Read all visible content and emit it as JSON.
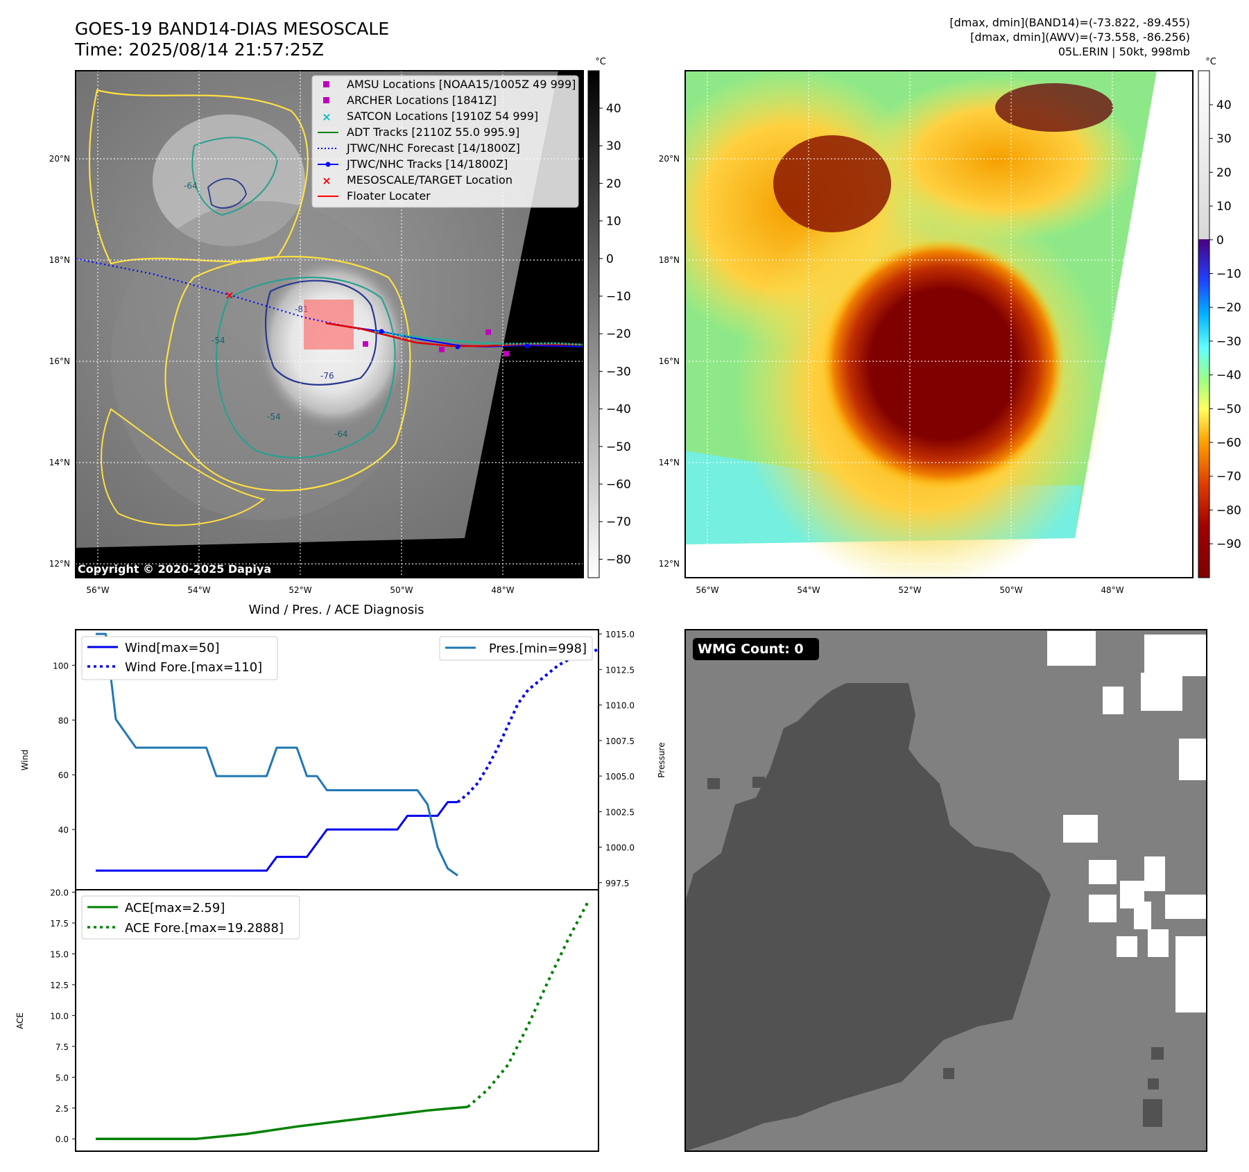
{
  "header": {
    "title_line1": "GOES-19 BAND14-DIAS MESOSCALE",
    "title_line2": "Time: 2025/08/14 21:57:25Z",
    "info_line1": "[dmax, dmin](BAND14)=(-73.822, -89.455)",
    "info_line2": "[dmax, dmin](AWV)=(-73.558, -86.256)",
    "info_line3": "05L.ERIN | 50kt, 998mb"
  },
  "satellite_panels": {
    "lat_labels": [
      "20°N",
      "18°N",
      "16°N",
      "14°N",
      "12°N"
    ],
    "lon_labels": [
      "56°W",
      "54°W",
      "52°W",
      "50°W",
      "48°W"
    ],
    "copyright": "Copyright © 2020-2025 Dapiya",
    "contour_labels": [
      "-64",
      "-54",
      "-81",
      "-76",
      "-54",
      "-64"
    ],
    "legend": [
      {
        "label": "AMSU Locations [NOAA15/1005Z 49 999]",
        "marker": "square",
        "color": "#c000c0"
      },
      {
        "label": "ARCHER Locations [1841Z]",
        "marker": "square",
        "color": "#c000c0"
      },
      {
        "label": "SATCON Locations [1910Z 54 999]",
        "marker": "x",
        "color": "#00c0c0"
      },
      {
        "label": "ADT Tracks [2110Z 55.0 995.9]",
        "marker": "line",
        "color": "#008000"
      },
      {
        "label": "JTWC/NHC Forecast [14/1800Z]",
        "marker": "dotted",
        "color": "#0000ff"
      },
      {
        "label": "JTWC/NHC Tracks [14/1800Z]",
        "marker": "line-dot",
        "color": "#0000ff"
      },
      {
        "label": "MESOSCALE/TARGET Location",
        "marker": "x",
        "color": "#ff0000"
      },
      {
        "label": "Floater Locater",
        "marker": "line",
        "color": "#ff0000"
      }
    ],
    "colorbar_left": {
      "unit": "°C",
      "ticks": [
        "40",
        "30",
        "20",
        "10",
        "0",
        "−10",
        "−20",
        "−30",
        "−40",
        "−50",
        "−60",
        "−70",
        "−80"
      ]
    },
    "colorbar_right": {
      "unit": "°C",
      "ticks": [
        "40",
        "30",
        "20",
        "10",
        "0",
        "−10",
        "−20",
        "−30",
        "−40",
        "−50",
        "−60",
        "−70",
        "−80",
        "−90"
      ]
    }
  },
  "wmg_panel": {
    "label": "WMG Count: 0"
  },
  "chart_data": [
    {
      "type": "line",
      "title": "Wind / Pres. / ACE Diagnosis",
      "ylabel": "Wind",
      "ylabel_right": "Pressure",
      "ylim": [
        18,
        113
      ],
      "ylim_right": [
        997,
        1015.3
      ],
      "yticks": [
        40,
        60,
        80,
        100
      ],
      "yticks_right": [
        "997.5",
        "1000.0",
        "1002.5",
        "1005.0",
        "1007.5",
        "1010.0",
        "1012.5",
        "1015.0"
      ],
      "x_range": [
        -2,
        50
      ],
      "legend_left": [
        "Wind[max=50]",
        "Wind Fore.[max=110]"
      ],
      "legend_right": [
        "Pres.[min=998]"
      ],
      "series": [
        {
          "name": "Wind[max=50]",
          "color": "#0000ee",
          "style": "solid",
          "x": [
            0,
            7,
            8,
            10,
            11,
            13,
            14,
            17,
            18,
            19,
            20,
            21,
            22,
            23,
            24,
            25,
            26,
            27,
            28,
            29,
            30,
            31,
            32,
            33,
            34,
            35,
            36
          ],
          "values": [
            25,
            25,
            25,
            25,
            25,
            25,
            25,
            25,
            30,
            30,
            30,
            30,
            35,
            40,
            40,
            40,
            40,
            40,
            40,
            40,
            40,
            45,
            45,
            45,
            45,
            50,
            50
          ]
        },
        {
          "name": "Wind Fore.[max=110]",
          "color": "#0000ee",
          "style": "dotted",
          "x": [
            36,
            37,
            38,
            39,
            40,
            41,
            42,
            43,
            44,
            45,
            46,
            47,
            48,
            49,
            50
          ],
          "values": [
            50,
            53,
            57,
            63,
            70,
            78,
            86,
            91,
            94,
            97,
            100,
            102,
            103,
            104,
            106
          ]
        },
        {
          "name": "Pres.[min=998]",
          "color": "#1f77b4",
          "style": "solid",
          "axis": "right",
          "x": [
            0,
            1,
            2,
            3,
            4,
            5,
            6,
            7,
            8,
            9,
            10,
            11,
            12,
            13,
            14,
            15,
            16,
            17,
            18,
            19,
            20,
            21,
            22,
            23,
            24,
            25,
            26,
            27,
            28,
            29,
            30,
            31,
            32,
            33,
            34,
            35,
            36
          ],
          "values": [
            1015,
            1015,
            1009,
            1008,
            1007,
            1007,
            1007,
            1007,
            1007,
            1007,
            1007,
            1007,
            1005,
            1005,
            1005,
            1005,
            1005,
            1005,
            1007,
            1007,
            1007,
            1005,
            1005,
            1004,
            1004,
            1004,
            1004,
            1004,
            1004,
            1004,
            1004,
            1004,
            1004,
            1003,
            1000,
            998.5,
            998
          ]
        }
      ]
    },
    {
      "type": "line",
      "ylabel": "ACE",
      "ylim": [
        -1,
        20.2
      ],
      "yticks": [
        "0.0",
        "2.5",
        "5.0",
        "7.5",
        "10.0",
        "12.5",
        "15.0",
        "17.5",
        "20.0"
      ],
      "x_range": [
        -2,
        50
      ],
      "legend": [
        "ACE[max=2.59]",
        "ACE Fore.[max=19.2888]"
      ],
      "series": [
        {
          "name": "ACE[max=2.59]",
          "color": "#008000",
          "style": "solid",
          "x": [
            0,
            5,
            10,
            15,
            20,
            25,
            30,
            33,
            35,
            37
          ],
          "values": [
            0,
            0,
            0,
            0.4,
            1.0,
            1.5,
            2.0,
            2.3,
            2.45,
            2.59
          ]
        },
        {
          "name": "ACE Fore.[max=19.2888]",
          "color": "#008000",
          "style": "dotted",
          "x": [
            37,
            39,
            41,
            43,
            45,
            47,
            49
          ],
          "values": [
            2.59,
            4.0,
            6.0,
            9.2,
            12.8,
            16.2,
            19.2888
          ]
        }
      ]
    }
  ]
}
